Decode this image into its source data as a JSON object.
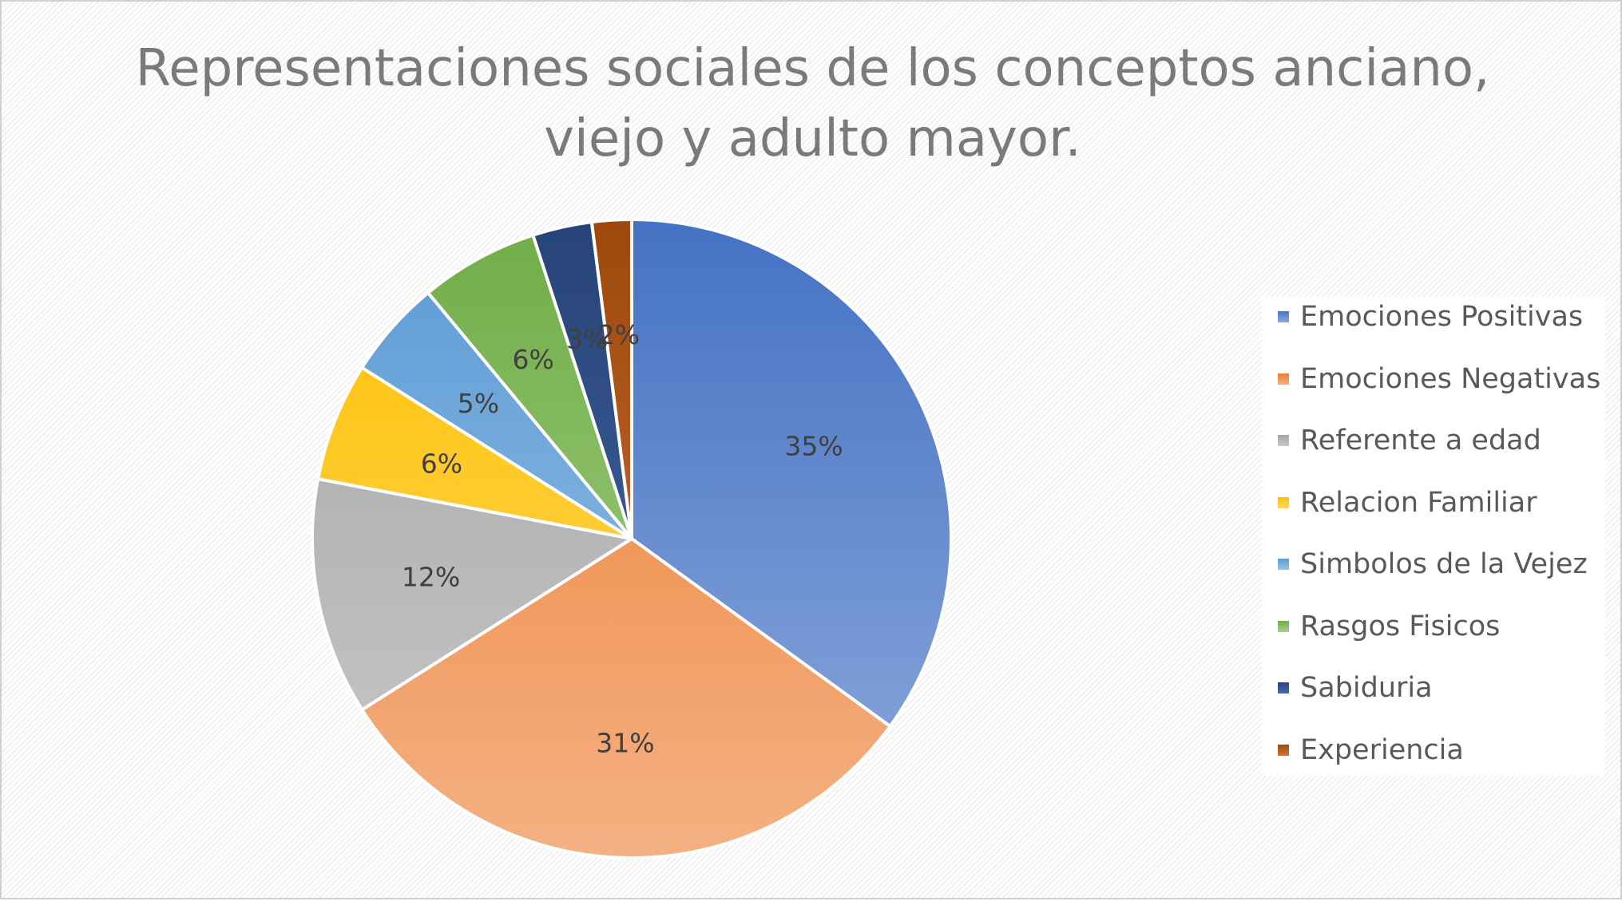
{
  "chart_data": {
    "type": "pie",
    "title": [
      "Representaciones sociales de los conceptos anciano,",
      "viejo y adulto mayor."
    ],
    "legend_position": "right",
    "slices": [
      {
        "name": "Emociones Positivas",
        "value": 35,
        "label": "35%",
        "color": "#4472C4",
        "color_light": "#8FAADC"
      },
      {
        "name": "Emociones Negativas",
        "value": 31,
        "label": "31%",
        "color": "#ED7D31",
        "color_light": "#F4B183"
      },
      {
        "name": "Referente a edad",
        "value": 12,
        "label": "12%",
        "color": "#A5A5A5",
        "color_light": "#C9C9C9"
      },
      {
        "name": "Relacion Familiar",
        "value": 6,
        "label": "6%",
        "color": "#FFC000",
        "color_light": "#FFD966"
      },
      {
        "name": "Simbolos de la Vejez",
        "value": 5,
        "label": "5%",
        "color": "#5B9BD5",
        "color_light": "#9DC3E6"
      },
      {
        "name": "Rasgos Fisicos",
        "value": 6,
        "label": "6%",
        "color": "#70AD47",
        "color_light": "#A9D18E"
      },
      {
        "name": "Sabiduria",
        "value": 3,
        "label": "3%",
        "color": "#264478",
        "color_light": "#4A6AAA"
      },
      {
        "name": "Experiencia",
        "value": 2,
        "label": "2%",
        "color": "#9E480E",
        "color_light": "#D0753A"
      }
    ]
  }
}
